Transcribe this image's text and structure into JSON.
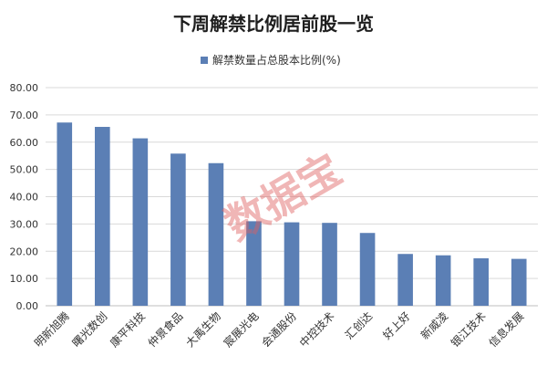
{
  "chart_data": {
    "type": "bar",
    "title": "下周解禁比例居前股一览",
    "legend": {
      "label": "解禁数量占总股本比例(%)",
      "position": "top"
    },
    "categories": [
      "明新旭腾",
      "曙光数创",
      "康平科技",
      "仲景食品",
      "大禹生物",
      "宸展光电",
      "会通股份",
      "中控技术",
      "汇创达",
      "好上好",
      "新威凌",
      "银江技术",
      "信息发展"
    ],
    "series": [
      {
        "name": "解禁数量占总股本比例(%)",
        "values": [
          67.2,
          65.6,
          61.4,
          55.8,
          52.3,
          31.0,
          30.6,
          30.4,
          26.7,
          19.0,
          18.5,
          17.4,
          17.2
        ]
      }
    ],
    "ylim": [
      0,
      80
    ],
    "yticks": [
      "0.00",
      "10.00",
      "20.00",
      "30.00",
      "40.00",
      "50.00",
      "60.00",
      "70.00",
      "80.00"
    ],
    "grid": true,
    "colors": {
      "bar": "#5b7fb5",
      "grid": "#d9d9d9",
      "axis": "#bfbfbf"
    },
    "watermark": "数据宝"
  }
}
